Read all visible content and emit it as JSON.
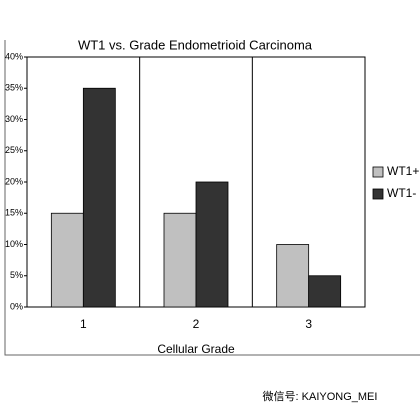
{
  "chart_data": {
    "type": "bar",
    "title": "WT1 vs. Grade Endometrioid Carcinoma",
    "xlabel": "Cellular Grade",
    "categories": [
      "1",
      "2",
      "3"
    ],
    "series": [
      {
        "name": "WT1+",
        "color": "#c0c0c0",
        "values": [
          15,
          15,
          10
        ]
      },
      {
        "name": "WT1-",
        "color": "#333333",
        "values": [
          35,
          20,
          5
        ]
      }
    ],
    "ylim": [
      0,
      40
    ],
    "yticks": [
      {
        "value": 0,
        "label": "0%"
      },
      {
        "value": 5,
        "label": "5%"
      },
      {
        "value": 10,
        "label": "10%"
      },
      {
        "value": 15,
        "label": "15%"
      },
      {
        "value": 20,
        "label": "20%"
      },
      {
        "value": 25,
        "label": "25%"
      },
      {
        "value": 30,
        "label": "30%"
      },
      {
        "value": 35,
        "label": "35%"
      },
      {
        "value": 40,
        "label": "40%"
      }
    ],
    "legend": "right"
  },
  "watermark": "微信号: KAIYONG_MEI"
}
